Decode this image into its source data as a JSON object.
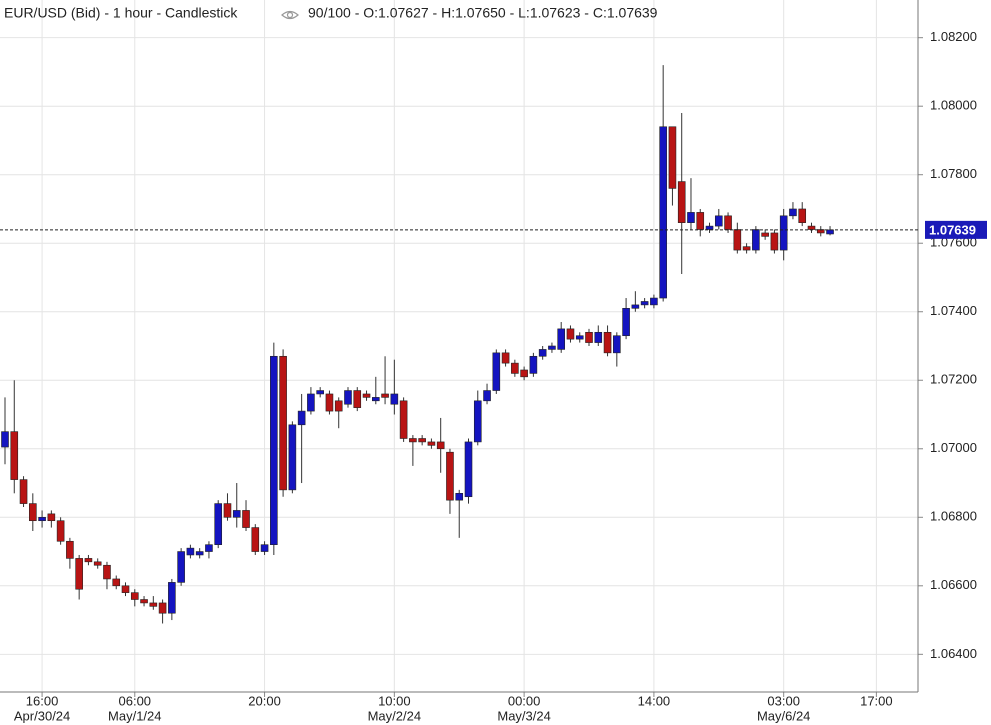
{
  "chart_data": {
    "type": "candlestick",
    "title": "EUR/USD (Bid) - 1 hour - Candlestick",
    "info": "90/100 - O:1.07627 - H:1.07650 - L:1.07623 - C:1.07639",
    "up_color": "#1414c0",
    "down_color": "#b81414",
    "grid": true,
    "open": [
      1.07005,
      1.0705,
      1.0691,
      1.0684,
      1.0679,
      1.0681,
      1.0679,
      1.0673,
      1.0668,
      1.0668,
      1.0667,
      1.0666,
      1.0662,
      1.066,
      1.0658,
      1.0656,
      1.0655,
      1.0655,
      1.0652,
      1.0661,
      1.0669,
      1.0669,
      1.067,
      1.0672,
      1.0684,
      1.068,
      1.0682,
      1.0677,
      1.067,
      1.0672,
      1.0727,
      1.0688,
      1.0707,
      1.0711,
      1.0716,
      1.0716,
      1.0714,
      1.0713,
      1.0717,
      1.0716,
      1.0714,
      1.0716,
      1.0713,
      1.0714,
      1.0703,
      1.0703,
      1.0702,
      1.0702,
      1.0699,
      1.0685,
      1.0686,
      1.0702,
      1.0714,
      1.0717,
      1.0728,
      1.0725,
      1.0723,
      1.0722,
      1.0727,
      1.0729,
      1.0729,
      1.0735,
      1.0732,
      1.0734,
      1.0731,
      1.0734,
      1.0728,
      1.0733,
      1.0741,
      1.0742,
      1.0742,
      1.0744,
      1.0794,
      1.0778,
      1.0766,
      1.0769,
      1.0764,
      1.0765,
      1.0768,
      1.0764,
      1.0759,
      1.0758,
      1.0763,
      1.0763,
      1.0758,
      1.0768,
      1.077,
      1.0765,
      1.0764,
      1.07627
    ],
    "high": [
      1.0715,
      1.072,
      1.0692,
      1.0687,
      1.0682,
      1.0682,
      1.068,
      1.0674,
      1.0669,
      1.0669,
      1.0668,
      1.0667,
      1.0663,
      1.0661,
      1.0659,
      1.0657,
      1.0657,
      1.0656,
      1.0662,
      1.0671,
      1.0672,
      1.0671,
      1.0673,
      1.0685,
      1.0687,
      1.069,
      1.0685,
      1.0678,
      1.0673,
      1.0731,
      1.0729,
      1.0708,
      1.0716,
      1.0718,
      1.0718,
      1.0717,
      1.0715,
      1.0718,
      1.0718,
      1.0717,
      1.0721,
      1.0727,
      1.0726,
      1.0715,
      1.0704,
      1.0704,
      1.0703,
      1.0709,
      1.07,
      1.0688,
      1.0703,
      1.0717,
      1.0719,
      1.0729,
      1.0729,
      1.0726,
      1.0724,
      1.0728,
      1.073,
      1.0731,
      1.0737,
      1.0736,
      1.0734,
      1.0735,
      1.0736,
      1.0736,
      1.0734,
      1.0744,
      1.0746,
      1.0744,
      1.0745,
      1.0812,
      1.0794,
      1.0798,
      1.0779,
      1.077,
      1.0766,
      1.077,
      1.0769,
      1.0766,
      1.076,
      1.0765,
      1.0764,
      1.0764,
      1.077,
      1.0772,
      1.0772,
      1.0766,
      1.0765,
      1.0765
    ],
    "low": [
      1.06955,
      1.0687,
      1.0683,
      1.0676,
      1.0677,
      1.0677,
      1.0672,
      1.0665,
      1.0656,
      1.0666,
      1.0665,
      1.0659,
      1.0659,
      1.0657,
      1.0654,
      1.0654,
      1.0653,
      1.0649,
      1.065,
      1.066,
      1.0668,
      1.0668,
      1.0668,
      1.0671,
      1.0679,
      1.0677,
      1.0676,
      1.0669,
      1.0669,
      1.0669,
      1.0686,
      1.0687,
      1.069,
      1.071,
      1.0715,
      1.071,
      1.0706,
      1.0712,
      1.0711,
      1.0714,
      1.0713,
      1.0713,
      1.071,
      1.0702,
      1.0695,
      1.0701,
      1.07,
      1.0693,
      1.0681,
      1.0674,
      1.0684,
      1.0701,
      1.0713,
      1.0716,
      1.0724,
      1.0721,
      1.072,
      1.0721,
      1.0726,
      1.0728,
      1.0728,
      1.0731,
      1.0731,
      1.073,
      1.073,
      1.0727,
      1.0724,
      1.0732,
      1.074,
      1.0741,
      1.0741,
      1.0743,
      1.0771,
      1.0751,
      1.0764,
      1.0762,
      1.0763,
      1.0764,
      1.0763,
      1.0757,
      1.0757,
      1.0757,
      1.0761,
      1.0757,
      1.0755,
      1.0767,
      1.0765,
      1.0763,
      1.0762,
      1.07623
    ],
    "close": [
      1.0705,
      1.0691,
      1.0684,
      1.0679,
      1.068,
      1.0679,
      1.0673,
      1.0668,
      1.0659,
      1.0667,
      1.0666,
      1.0662,
      1.066,
      1.0658,
      1.0656,
      1.0655,
      1.0654,
      1.0652,
      1.0661,
      1.067,
      1.0671,
      1.067,
      1.0672,
      1.0684,
      1.068,
      1.0682,
      1.0677,
      1.067,
      1.0672,
      1.0727,
      1.0688,
      1.0707,
      1.0711,
      1.0716,
      1.0717,
      1.0711,
      1.0711,
      1.0717,
      1.0712,
      1.0715,
      1.0715,
      1.0715,
      1.0716,
      1.0703,
      1.0702,
      1.0702,
      1.0701,
      1.07,
      1.0685,
      1.0687,
      1.0702,
      1.0714,
      1.0717,
      1.0728,
      1.0725,
      1.0722,
      1.0721,
      1.0727,
      1.0729,
      1.073,
      1.0735,
      1.0732,
      1.0733,
      1.0731,
      1.0734,
      1.0728,
      1.0733,
      1.0741,
      1.0742,
      1.0743,
      1.0744,
      1.0794,
      1.0776,
      1.0766,
      1.0769,
      1.0764,
      1.0765,
      1.0768,
      1.0764,
      1.0758,
      1.0758,
      1.0764,
      1.0762,
      1.0758,
      1.0768,
      1.077,
      1.0766,
      1.0764,
      1.0763,
      1.07639
    ],
    "ylim": [
      1.0629,
      1.0831
    ],
    "yticks": [
      {
        "value": 1.064,
        "label": "1.06400"
      },
      {
        "value": 1.066,
        "label": "1.06600"
      },
      {
        "value": 1.068,
        "label": "1.06800"
      },
      {
        "value": 1.07,
        "label": "1.07000"
      },
      {
        "value": 1.072,
        "label": "1.07200"
      },
      {
        "value": 1.074,
        "label": "1.07400"
      },
      {
        "value": 1.076,
        "label": "1.07600"
      },
      {
        "value": 1.078,
        "label": "1.07800"
      },
      {
        "value": 1.08,
        "label": "1.08000"
      },
      {
        "value": 1.082,
        "label": "1.08200"
      }
    ],
    "xticks": [
      {
        "value": 4,
        "label": "16:00"
      },
      {
        "value": 14,
        "label": "06:00"
      },
      {
        "value": 28,
        "label": "20:00"
      },
      {
        "value": 42,
        "label": "10:00"
      },
      {
        "value": 56,
        "label": "00:00"
      },
      {
        "value": 70,
        "label": "14:00"
      },
      {
        "value": 84,
        "label": "03:00"
      },
      {
        "value": 94,
        "label": "17:00"
      }
    ],
    "xdates": [
      {
        "value": 4,
        "label": "Apr/30/24"
      },
      {
        "value": 14,
        "label": "May/1/24"
      },
      {
        "value": 42,
        "label": "May/2/24"
      },
      {
        "value": 56,
        "label": "May/3/24"
      },
      {
        "value": 84,
        "label": "May/6/24"
      }
    ],
    "last_price": {
      "value": 1.07639,
      "label": "1.07639"
    }
  }
}
